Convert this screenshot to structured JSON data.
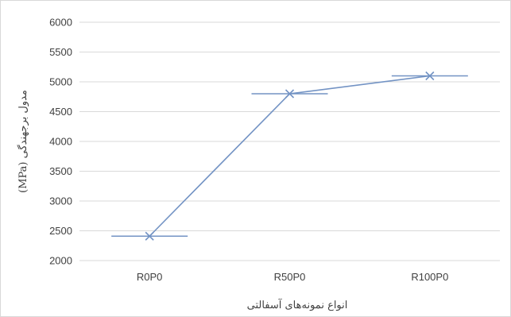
{
  "chart_data": {
    "type": "line",
    "categories": [
      "R0P0",
      "R50P0",
      "R100P0"
    ],
    "series": [
      {
        "values": [
          2410,
          4800,
          5100
        ],
        "color": "#7393c4"
      }
    ],
    "xlabel": "انواع نمونه‌های آسفالتی",
    "ylabel": "مدول برجهندگی (MPa)",
    "ylim": [
      2000,
      6000
    ],
    "yticks": [
      2000,
      2500,
      3000,
      3500,
      4000,
      4500,
      5000,
      5500,
      6000
    ],
    "grid": true,
    "marker": "x",
    "marker_style": "x with horizontal bar",
    "colors": {
      "grid": "#d9d9d9",
      "axis": "#bfbfbf",
      "text": "#404040",
      "series": "#7393c4"
    }
  }
}
